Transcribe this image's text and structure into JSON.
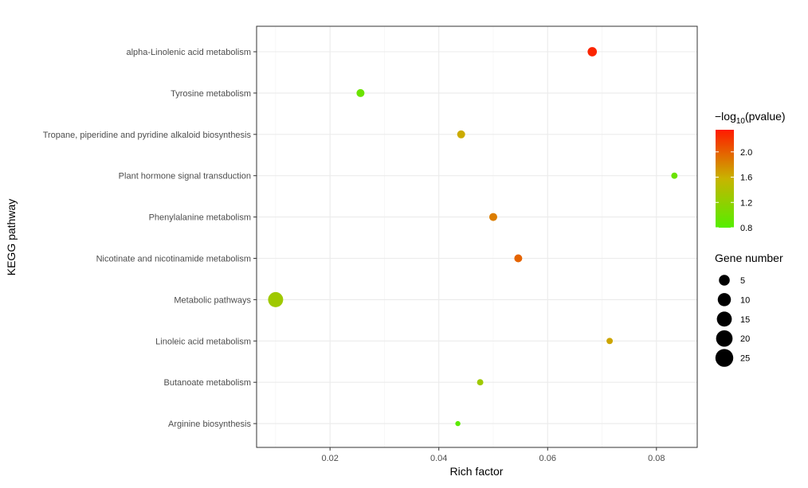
{
  "chart_data": {
    "type": "scatter",
    "title": "",
    "xlabel": "Rich factor",
    "ylabel": "KEGG pathway",
    "xlim": [
      0.0065,
      0.0875
    ],
    "x_ticks": [
      0.02,
      0.04,
      0.06,
      0.08
    ],
    "x_tick_labels": [
      "0.02",
      "0.04",
      "0.06",
      "0.08"
    ],
    "grid": true,
    "legend_position": "right",
    "categories": [
      "alpha-Linolenic acid metabolism",
      "Tyrosine metabolism",
      "Tropane, piperidine and pyridine alkaloid biosynthesis",
      "Plant hormone signal transduction",
      "Phenylalanine metabolism",
      "Nicotinate and nicotinamide metabolism",
      "Metabolic pathways",
      "Linoleic acid metabolism",
      "Butanoate metabolism",
      "Arginine biosynthesis"
    ],
    "points": [
      {
        "pathway": "alpha-Linolenic acid metabolism",
        "rich_factor": 0.0682,
        "neg_log10_pvalue": 2.3,
        "gene_number": 3
      },
      {
        "pathway": "Tyrosine metabolism",
        "rich_factor": 0.0256,
        "neg_log10_pvalue": 0.95,
        "gene_number": 2
      },
      {
        "pathway": "Tropane, piperidine and pyridine alkaloid biosynthesis",
        "rich_factor": 0.0441,
        "neg_log10_pvalue": 1.62,
        "gene_number": 2
      },
      {
        "pathway": "Plant hormone signal transduction",
        "rich_factor": 0.0833,
        "neg_log10_pvalue": 0.95,
        "gene_number": 1
      },
      {
        "pathway": "Phenylalanine metabolism",
        "rich_factor": 0.05,
        "neg_log10_pvalue": 1.85,
        "gene_number": 2
      },
      {
        "pathway": "Nicotinate and nicotinamide metabolism",
        "rich_factor": 0.0546,
        "neg_log10_pvalue": 1.98,
        "gene_number": 2
      },
      {
        "pathway": "Metabolic pathways",
        "rich_factor": 0.01,
        "neg_log10_pvalue": 1.3,
        "gene_number": 10
      },
      {
        "pathway": "Linoleic acid metabolism",
        "rich_factor": 0.0714,
        "neg_log10_pvalue": 1.65,
        "gene_number": 1
      },
      {
        "pathway": "Butanoate metabolism",
        "rich_factor": 0.0476,
        "neg_log10_pvalue": 1.3,
        "gene_number": 1
      },
      {
        "pathway": "Arginine biosynthesis",
        "rich_factor": 0.0435,
        "neg_log10_pvalue": 0.85,
        "gene_number": 0.5
      }
    ],
    "color_legend": {
      "title_prefix": "−log",
      "title_subscript": "10",
      "title_suffix": "(pvalue)",
      "range": [
        0.8,
        2.35
      ],
      "ticks": [
        0.8,
        1.2,
        1.6,
        2.0
      ],
      "tick_labels": [
        "0.8",
        "1.2",
        "1.6",
        "2.0"
      ],
      "low_color": "#55ee00",
      "mid_color": "#c8b400",
      "high_color": "#ff1a00"
    },
    "size_legend": {
      "title": "Gene number",
      "values": [
        5,
        10,
        15,
        20,
        25
      ],
      "labels": [
        "5",
        "10",
        "15",
        "20",
        "25"
      ],
      "color": "#000000"
    }
  }
}
